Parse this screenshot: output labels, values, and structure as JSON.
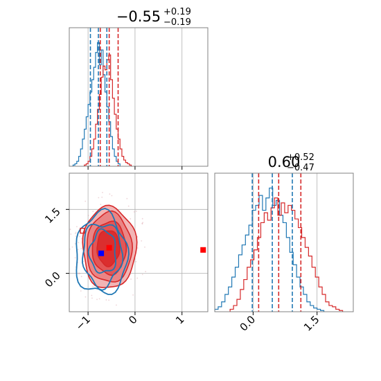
{
  "chart_data": {
    "type": "corner",
    "colors": {
      "red": "#d62728",
      "blue": "#1f77b4",
      "grid": "#b0b0b0",
      "frame": "#808080",
      "point_blue": "#0000ff",
      "point_red": "#ff0000"
    },
    "param1": {
      "title": "−0.55",
      "title_plus": "+0.19",
      "title_minus": "−0.19",
      "xlim": [
        -1.4,
        1.55
      ],
      "ticks": [
        -1,
        0,
        1
      ],
      "tick_labels": [
        "−1",
        "0",
        "1"
      ],
      "red_quantiles": [
        -0.74,
        -0.55,
        -0.36
      ],
      "blue_quantiles": [
        -0.95,
        -0.78,
        -0.6
      ]
    },
    "param2": {
      "title": "0.60",
      "title_plus": "+0.52",
      "title_minus": "−0.47",
      "lim": [
        -0.9,
        2.35
      ],
      "ticks": [
        0,
        1.5
      ],
      "tick_labels": [
        "0.0",
        "1.5"
      ],
      "red_quantiles": [
        0.13,
        0.6,
        1.12
      ],
      "blue_quantiles": [
        -0.02,
        0.45,
        0.92
      ]
    },
    "hist1_red": {
      "x": [
        -1.06,
        -1.02,
        -0.98,
        -0.94,
        -0.9,
        -0.86,
        -0.82,
        -0.78,
        -0.74,
        -0.7,
        -0.66,
        -0.62,
        -0.58,
        -0.54,
        -0.5,
        -0.46,
        -0.42,
        -0.38,
        -0.34,
        -0.3,
        -0.26,
        -0.22,
        -0.18,
        -0.14,
        -0.1
      ],
      "values": [
        0.01,
        0.02,
        0.04,
        0.08,
        0.14,
        0.22,
        0.34,
        0.46,
        0.58,
        0.72,
        0.81,
        0.78,
        0.86,
        0.9,
        0.7,
        0.55,
        0.42,
        0.3,
        0.22,
        0.14,
        0.08,
        0.05,
        0.03,
        0.02,
        0.01
      ]
    },
    "hist1_blue": {
      "x": [
        -1.3,
        -1.26,
        -1.22,
        -1.18,
        -1.14,
        -1.1,
        -1.06,
        -1.02,
        -0.98,
        -0.94,
        -0.9,
        -0.86,
        -0.82,
        -0.78,
        -0.74,
        -0.7,
        -0.66,
        -0.62,
        -0.58,
        -0.54,
        -0.5,
        -0.46,
        -0.42,
        -0.38,
        -0.34
      ],
      "values": [
        0.01,
        0.02,
        0.04,
        0.08,
        0.14,
        0.22,
        0.3,
        0.4,
        0.5,
        0.6,
        0.7,
        0.8,
        0.92,
        1.0,
        0.82,
        0.94,
        0.74,
        0.6,
        0.48,
        0.36,
        0.24,
        0.14,
        0.08,
        0.04,
        0.02
      ]
    },
    "hist2_red": {
      "x": [
        -0.5,
        -0.42,
        -0.34,
        -0.26,
        -0.18,
        -0.1,
        -0.02,
        0.06,
        0.14,
        0.22,
        0.3,
        0.38,
        0.46,
        0.54,
        0.62,
        0.7,
        0.78,
        0.86,
        0.94,
        1.02,
        1.1,
        1.18,
        1.26,
        1.34,
        1.42,
        1.5,
        1.58,
        1.66,
        1.74,
        1.82,
        1.9,
        1.98,
        2.06
      ],
      "values": [
        0.02,
        0.05,
        0.1,
        0.18,
        0.26,
        0.36,
        0.42,
        0.5,
        0.6,
        0.72,
        0.8,
        0.74,
        0.84,
        0.92,
        0.78,
        0.88,
        0.8,
        0.86,
        0.82,
        0.75,
        0.68,
        0.6,
        0.52,
        0.45,
        0.36,
        0.28,
        0.2,
        0.14,
        0.08,
        0.05,
        0.04,
        0.02,
        0.01
      ]
    },
    "hist2_blue": {
      "x": [
        -0.86,
        -0.78,
        -0.7,
        -0.62,
        -0.54,
        -0.46,
        -0.38,
        -0.3,
        -0.22,
        -0.14,
        -0.06,
        0.02,
        0.1,
        0.18,
        0.26,
        0.34,
        0.42,
        0.5,
        0.58,
        0.66,
        0.74,
        0.82,
        0.9,
        0.98,
        1.06,
        1.14,
        1.22,
        1.3,
        1.38,
        1.46,
        1.54,
        1.62
      ],
      "values": [
        0.02,
        0.04,
        0.08,
        0.14,
        0.2,
        0.28,
        0.36,
        0.46,
        0.54,
        0.62,
        0.7,
        0.82,
        0.86,
        0.94,
        0.82,
        0.92,
        1.0,
        0.86,
        0.9,
        0.78,
        0.72,
        0.6,
        0.48,
        0.38,
        0.28,
        0.2,
        0.14,
        0.08,
        0.05,
        0.03,
        0.02,
        0.01
      ]
    },
    "red_contours": [
      {
        "cx": -0.55,
        "cy": 0.6,
        "rx": 0.57,
        "ry": 0.96,
        "fill": "#f2b5b5"
      },
      {
        "cx": -0.55,
        "cy": 0.6,
        "rx": 0.48,
        "ry": 0.82,
        "fill": "#ea8585"
      },
      {
        "cx": -0.55,
        "cy": 0.6,
        "rx": 0.36,
        "ry": 0.62,
        "fill": "#e35656"
      },
      {
        "cx": -0.57,
        "cy": 0.6,
        "rx": 0.24,
        "ry": 0.42,
        "fill": "#db2e2e"
      }
    ],
    "blue_contours": [
      {
        "cx": -0.72,
        "cy": 0.45,
        "rx": 0.55,
        "ry": 0.95
      },
      {
        "cx": -0.7,
        "cy": 0.45,
        "rx": 0.42,
        "ry": 0.74
      },
      {
        "cx": -0.68,
        "cy": 0.5,
        "rx": 0.28,
        "ry": 0.5
      }
    ],
    "points": [
      {
        "x": -0.55,
        "y": 0.6,
        "color": "point_red"
      },
      {
        "x": -0.72,
        "y": 0.47,
        "color": "point_blue"
      },
      {
        "x": 1.45,
        "y": 0.55,
        "color": "point_red"
      },
      {
        "x": -1.12,
        "y": 1.0,
        "color": "point_red"
      }
    ]
  }
}
